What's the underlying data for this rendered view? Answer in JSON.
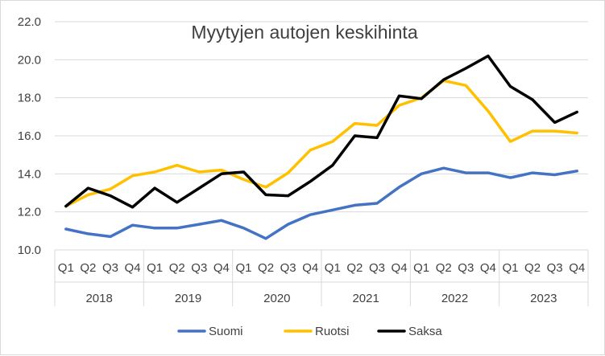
{
  "chart_data": {
    "type": "line",
    "title": "Myytyjen autojen keskihinta",
    "xlabel": "",
    "ylabel": "",
    "ylim": [
      10.0,
      22.0
    ],
    "yticks": [
      "10.0",
      "12.0",
      "14.0",
      "16.0",
      "18.0",
      "20.0",
      "22.0"
    ],
    "years": [
      "2018",
      "2019",
      "2020",
      "2021",
      "2022",
      "2023"
    ],
    "quarters": [
      "Q1",
      "Q2",
      "Q3",
      "Q4"
    ],
    "grid": true,
    "legend_position": "bottom",
    "series": [
      {
        "name": "Suomi",
        "color": "#4472c4",
        "values": [
          11.1,
          10.85,
          10.7,
          11.3,
          11.15,
          11.15,
          11.35,
          11.55,
          11.15,
          10.6,
          11.35,
          11.85,
          12.1,
          12.35,
          12.45,
          13.3,
          14.0,
          14.3,
          14.05,
          14.05,
          13.8,
          14.05,
          13.95,
          14.15
        ]
      },
      {
        "name": "Ruotsi",
        "color": "#ffc000",
        "values": [
          12.3,
          12.9,
          13.2,
          13.9,
          14.1,
          14.45,
          14.1,
          14.2,
          13.7,
          13.3,
          14.05,
          15.25,
          15.7,
          16.65,
          16.55,
          17.6,
          18.0,
          18.9,
          18.65,
          17.3,
          15.7,
          16.25,
          16.25,
          16.15
        ]
      },
      {
        "name": "Saksa",
        "color": "#000000",
        "values": [
          12.3,
          13.25,
          12.85,
          12.25,
          13.25,
          12.5,
          13.25,
          14.0,
          14.1,
          12.9,
          12.85,
          13.6,
          14.45,
          16.0,
          15.9,
          18.1,
          17.95,
          18.95,
          19.55,
          20.2,
          18.6,
          17.9,
          16.7,
          17.25
        ]
      }
    ]
  }
}
